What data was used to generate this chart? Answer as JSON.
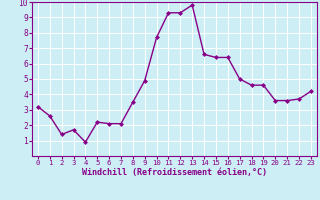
{
  "x": [
    0,
    1,
    2,
    3,
    4,
    5,
    6,
    7,
    8,
    9,
    10,
    11,
    12,
    13,
    14,
    15,
    16,
    17,
    18,
    19,
    20,
    21,
    22,
    23
  ],
  "y": [
    3.2,
    2.6,
    1.4,
    1.7,
    0.9,
    2.2,
    2.1,
    2.1,
    3.5,
    4.9,
    7.7,
    9.3,
    9.3,
    9.8,
    6.6,
    6.4,
    6.4,
    5.0,
    4.6,
    4.6,
    3.6,
    3.6,
    3.7,
    4.2
  ],
  "xlabel": "Windchill (Refroidissement éolien,°C)",
  "xlim": [
    -0.5,
    23.5
  ],
  "ylim": [
    0,
    10
  ],
  "xticks": [
    0,
    1,
    2,
    3,
    4,
    5,
    6,
    7,
    8,
    9,
    10,
    11,
    12,
    13,
    14,
    15,
    16,
    17,
    18,
    19,
    20,
    21,
    22,
    23
  ],
  "xtick_labels": [
    "0",
    "1",
    "2",
    "3",
    "4",
    "5",
    "6",
    "7",
    "8",
    "9",
    "10",
    "11",
    "12",
    "13",
    "14",
    "15",
    "16",
    "17",
    "18",
    "19",
    "20",
    "21",
    "22",
    "23"
  ],
  "yticks": [
    1,
    2,
    3,
    4,
    5,
    6,
    7,
    8,
    9,
    10
  ],
  "ytick_labels": [
    "1",
    "2",
    "3",
    "4",
    "5",
    "6",
    "7",
    "8",
    "9",
    "10"
  ],
  "line_color": "#880088",
  "marker": "D",
  "marker_size": 2.0,
  "bg_color": "#cceef4",
  "grid_color": "#aadddd",
  "xlabel_color": "#880088",
  "tick_color": "#880088",
  "spine_color": "#880088",
  "line_width": 1.0,
  "tick_fontsize": 5.2,
  "xlabel_fontsize": 6.0
}
